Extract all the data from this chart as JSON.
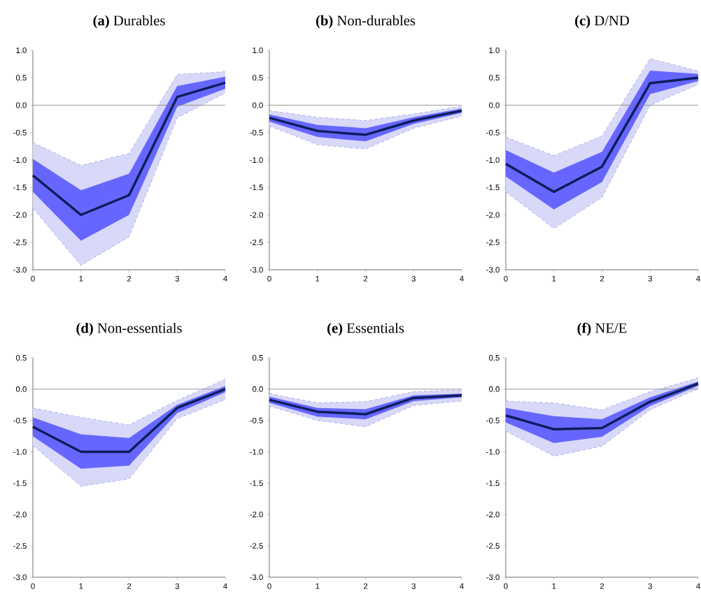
{
  "chart_data": [
    {
      "type": "line",
      "title": "**(a)** Durables",
      "x": [
        0,
        1,
        2,
        3,
        4
      ],
      "xlim": [
        0,
        4
      ],
      "xticks": [
        0,
        1,
        2,
        3,
        4
      ],
      "ylim": [
        -3,
        1
      ],
      "yticks": [
        {
          "value": -3,
          "label": "-3.0"
        },
        {
          "value": -2.5,
          "label": "-2.5"
        },
        {
          "value": -2,
          "label": "-2.0"
        },
        {
          "value": -1.5,
          "label": "-1.5"
        },
        {
          "value": -1,
          "label": "-1.0"
        },
        {
          "value": -0.5,
          "label": "-0.5"
        },
        {
          "value": 0,
          "label": "0.0"
        },
        {
          "value": 0.5,
          "label": "0.5"
        },
        {
          "value": 1,
          "label": "1.0"
        }
      ],
      "ref_lines": [
        {
          "axis": "y",
          "value": 0,
          "color": "#808080"
        }
      ],
      "series": [
        {
          "color": "#0c1e5a",
          "values": [
            -1.28,
            -2.0,
            -1.64,
            0.15,
            0.41
          ],
          "lower": [
            -1.58,
            -2.47,
            -2.0,
            -0.03,
            0.3
          ],
          "upper": [
            -0.98,
            -1.55,
            -1.25,
            0.35,
            0.52
          ]
        },
        {
          "color": "#9090ec",
          "line_style": "dashed",
          "values": [
            -0.68,
            -1.1,
            -0.88,
            0.56,
            0.61
          ],
          "lower": [
            -1.88,
            -2.92,
            -2.4,
            -0.23,
            0.22
          ],
          "upper": [
            -0.68,
            -1.1,
            -0.88,
            0.56,
            0.61
          ]
        },
        {
          "color": "#9090ec",
          "line_style": "dashed",
          "values": [
            -1.88,
            -2.92,
            -2.4,
            -0.23,
            0.22
          ]
        }
      ]
    },
    {
      "type": "line",
      "title": "**(b)** Non-durables",
      "x": [
        0,
        1,
        2,
        3,
        4
      ],
      "xlim": [
        0,
        4
      ],
      "xticks": [
        0,
        1,
        2,
        3,
        4
      ],
      "ylim": [
        -3,
        1
      ],
      "yticks": [
        {
          "value": -3,
          "label": "-3.0"
        },
        {
          "value": -2.5,
          "label": "-2.5"
        },
        {
          "value": -2,
          "label": "-2.0"
        },
        {
          "value": -1.5,
          "label": "-1.5"
        },
        {
          "value": -1,
          "label": "-1.0"
        },
        {
          "value": -0.5,
          "label": "-0.5"
        },
        {
          "value": 0,
          "label": "0.0"
        },
        {
          "value": 0.5,
          "label": "0.5"
        },
        {
          "value": 1,
          "label": "1.0"
        }
      ],
      "ref_lines": [
        {
          "axis": "y",
          "value": 0,
          "color": "#808080"
        }
      ],
      "series": [
        {
          "color": "#0c1e5a",
          "values": [
            -0.23,
            -0.47,
            -0.54,
            -0.28,
            -0.1
          ],
          "lower": [
            -0.3,
            -0.58,
            -0.66,
            -0.34,
            -0.14
          ],
          "upper": [
            -0.17,
            -0.36,
            -0.42,
            -0.22,
            -0.06
          ]
        },
        {
          "color": "#9090ec",
          "line_style": "dashed",
          "values": [
            -0.1,
            -0.22,
            -0.28,
            -0.16,
            -0.02
          ],
          "lower": [
            -0.38,
            -0.72,
            -0.8,
            -0.42,
            -0.2
          ],
          "upper": [
            -0.1,
            -0.22,
            -0.28,
            -0.16,
            -0.02
          ]
        },
        {
          "color": "#9090ec",
          "line_style": "dashed",
          "values": [
            -0.38,
            -0.72,
            -0.8,
            -0.42,
            -0.2
          ]
        }
      ]
    },
    {
      "type": "line",
      "title": "**(c)** D/ND",
      "x": [
        0,
        1,
        2,
        3,
        4
      ],
      "xlim": [
        0,
        4
      ],
      "xticks": [
        0,
        1,
        2,
        3,
        4
      ],
      "ylim": [
        -3,
        1
      ],
      "yticks": [
        {
          "value": -3,
          "label": "-3.0"
        },
        {
          "value": -2.5,
          "label": "-2.5"
        },
        {
          "value": -2,
          "label": "-2.0"
        },
        {
          "value": -1.5,
          "label": "-1.5"
        },
        {
          "value": -1,
          "label": "-1.0"
        },
        {
          "value": -0.5,
          "label": "-0.5"
        },
        {
          "value": 0,
          "label": "0.0"
        },
        {
          "value": 0.5,
          "label": "0.5"
        },
        {
          "value": 1,
          "label": "1.0"
        }
      ],
      "ref_lines": [
        {
          "axis": "y",
          "value": 0,
          "color": "#808080"
        }
      ],
      "series": [
        {
          "color": "#0c1e5a",
          "values": [
            -1.07,
            -1.58,
            -1.12,
            0.4,
            0.5
          ],
          "lower": [
            -1.3,
            -1.9,
            -1.4,
            0.2,
            0.44
          ],
          "upper": [
            -0.82,
            -1.23,
            -0.85,
            0.63,
            0.57
          ]
        },
        {
          "color": "#9090ec",
          "line_style": "dashed",
          "values": [
            -0.58,
            -0.92,
            -0.56,
            0.85,
            0.62
          ],
          "lower": [
            -1.58,
            -2.25,
            -1.68,
            0.0,
            0.38
          ],
          "upper": [
            -0.58,
            -0.92,
            -0.56,
            0.85,
            0.62
          ]
        },
        {
          "color": "#9090ec",
          "line_style": "dashed",
          "values": [
            -1.58,
            -2.25,
            -1.68,
            0.0,
            0.38
          ]
        }
      ]
    },
    {
      "type": "line",
      "title": "**(d)** Non-essentials",
      "x": [
        0,
        1,
        2,
        3,
        4
      ],
      "xlim": [
        0,
        4
      ],
      "xticks": [
        0,
        1,
        2,
        3,
        4
      ],
      "ylim": [
        -3,
        0.5
      ],
      "yticks": [
        {
          "value": -3,
          "label": "-3.0"
        },
        {
          "value": -2.5,
          "label": "-2.5"
        },
        {
          "value": -2,
          "label": "-2.0"
        },
        {
          "value": -1.5,
          "label": "-1.5"
        },
        {
          "value": -1,
          "label": "-1.0"
        },
        {
          "value": -0.5,
          "label": "-0.5"
        },
        {
          "value": 0,
          "label": "0.0"
        },
        {
          "value": 0.5,
          "label": "0.5"
        }
      ],
      "ref_lines": [
        {
          "axis": "y",
          "value": 0,
          "color": "#808080"
        }
      ],
      "series": [
        {
          "color": "#0c1e5a",
          "values": [
            -0.6,
            -1.0,
            -1.0,
            -0.3,
            0.0
          ],
          "lower": [
            -0.75,
            -1.27,
            -1.22,
            -0.38,
            -0.05
          ],
          "upper": [
            -0.45,
            -0.72,
            -0.78,
            -0.25,
            0.05
          ]
        },
        {
          "color": "#9090ec",
          "line_style": "dashed",
          "values": [
            -0.3,
            -0.45,
            -0.57,
            -0.18,
            0.16
          ],
          "lower": [
            -0.9,
            -1.55,
            -1.43,
            -0.47,
            -0.17
          ],
          "upper": [
            -0.3,
            -0.45,
            -0.57,
            -0.18,
            0.16
          ]
        },
        {
          "color": "#9090ec",
          "line_style": "dashed",
          "values": [
            -0.9,
            -1.55,
            -1.43,
            -0.47,
            -0.17
          ]
        }
      ]
    },
    {
      "type": "line",
      "title": "**(e)** Essentials",
      "x": [
        0,
        1,
        2,
        3,
        4
      ],
      "xlim": [
        0,
        4
      ],
      "xticks": [
        0,
        1,
        2,
        3,
        4
      ],
      "ylim": [
        -3,
        0.5
      ],
      "yticks": [
        {
          "value": -3,
          "label": "-3.0"
        },
        {
          "value": -2.5,
          "label": "-2.5"
        },
        {
          "value": -2,
          "label": "-2.0"
        },
        {
          "value": -1.5,
          "label": "-1.5"
        },
        {
          "value": -1,
          "label": "-1.0"
        },
        {
          "value": -0.5,
          "label": "-0.5"
        },
        {
          "value": 0,
          "label": "0.0"
        },
        {
          "value": 0.5,
          "label": "0.5"
        }
      ],
      "ref_lines": [
        {
          "axis": "y",
          "value": 0,
          "color": "#808080"
        }
      ],
      "series": [
        {
          "color": "#0c1e5a",
          "values": [
            -0.17,
            -0.36,
            -0.4,
            -0.14,
            -0.1
          ],
          "lower": [
            -0.22,
            -0.44,
            -0.48,
            -0.19,
            -0.13
          ],
          "upper": [
            -0.12,
            -0.3,
            -0.32,
            -0.1,
            -0.07
          ]
        },
        {
          "color": "#9090ec",
          "line_style": "dashed",
          "values": [
            -0.07,
            -0.22,
            -0.2,
            -0.04,
            -0.01
          ],
          "lower": [
            -0.27,
            -0.5,
            -0.6,
            -0.26,
            -0.19
          ],
          "upper": [
            -0.07,
            -0.22,
            -0.2,
            -0.04,
            -0.01
          ]
        },
        {
          "color": "#9090ec",
          "line_style": "dashed",
          "values": [
            -0.27,
            -0.5,
            -0.6,
            -0.26,
            -0.19
          ]
        }
      ]
    },
    {
      "type": "line",
      "title": "**(f)** NE/E",
      "x": [
        0,
        1,
        2,
        3,
        4
      ],
      "xlim": [
        0,
        4
      ],
      "xticks": [
        0,
        1,
        2,
        3,
        4
      ],
      "ylim": [
        -3,
        0.5
      ],
      "yticks": [
        {
          "value": -3,
          "label": "-3.0"
        },
        {
          "value": -2.5,
          "label": "-2.5"
        },
        {
          "value": -2,
          "label": "-2.0"
        },
        {
          "value": -1.5,
          "label": "-1.5"
        },
        {
          "value": -1,
          "label": "-1.0"
        },
        {
          "value": -0.5,
          "label": "-0.5"
        },
        {
          "value": 0,
          "label": "0.0"
        },
        {
          "value": 0.5,
          "label": "0.5"
        }
      ],
      "ref_lines": [
        {
          "axis": "y",
          "value": 0,
          "color": "#808080"
        }
      ],
      "series": [
        {
          "color": "#0c1e5a",
          "values": [
            -0.42,
            -0.64,
            -0.62,
            -0.2,
            0.09
          ],
          "lower": [
            -0.53,
            -0.86,
            -0.76,
            -0.27,
            0.05
          ],
          "upper": [
            -0.3,
            -0.43,
            -0.48,
            -0.13,
            0.12
          ]
        },
        {
          "color": "#9090ec",
          "line_style": "dashed",
          "values": [
            -0.19,
            -0.22,
            -0.33,
            -0.04,
            0.18
          ],
          "lower": [
            -0.67,
            -1.07,
            -0.91,
            -0.33,
            0.01
          ],
          "upper": [
            -0.19,
            -0.22,
            -0.33,
            -0.04,
            0.18
          ]
        },
        {
          "color": "#9090ec",
          "line_style": "dashed",
          "values": [
            -0.67,
            -1.07,
            -0.91,
            -0.33,
            0.01
          ]
        }
      ]
    }
  ]
}
